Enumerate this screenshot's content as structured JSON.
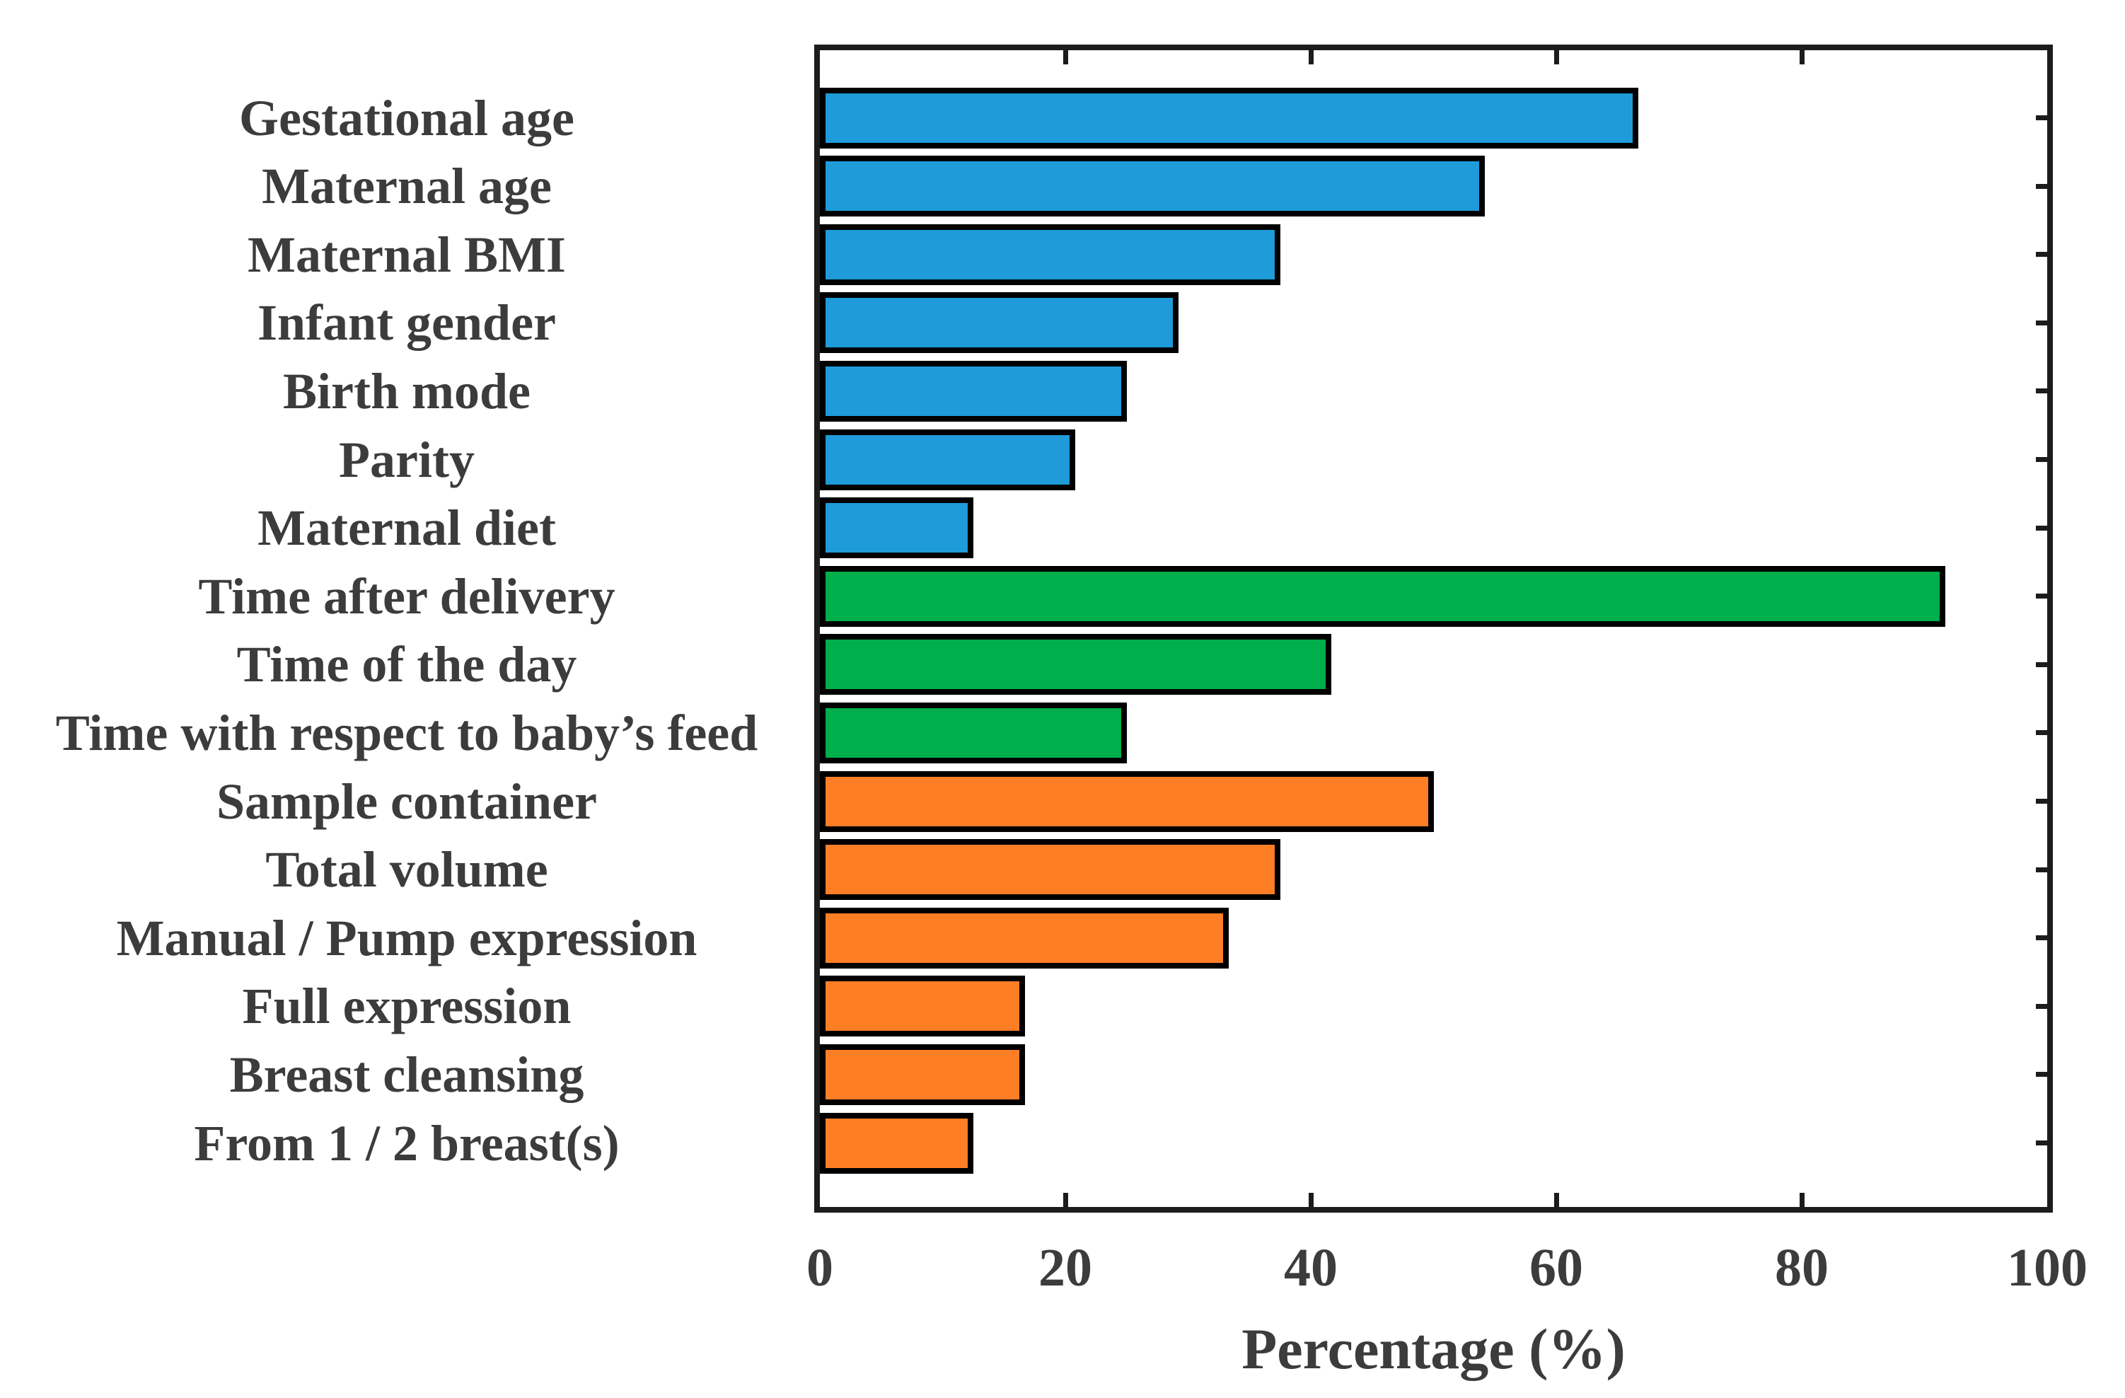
{
  "figure": {
    "background": "#ffffff",
    "text_color": "#3c3c3c",
    "axis_color": "#1c1c1c",
    "bar_border_color": "#000000"
  },
  "chart_data": {
    "type": "bar",
    "orientation": "horizontal",
    "title": "",
    "xlabel": "Percentage (%)",
    "ylabel": "",
    "xlim": [
      0,
      100
    ],
    "grid": false,
    "legend": "none",
    "xticks": [
      {
        "value": 0,
        "label": "0"
      },
      {
        "value": 20,
        "label": "20"
      },
      {
        "value": 40,
        "label": "40"
      },
      {
        "value": 60,
        "label": "60"
      },
      {
        "value": 80,
        "label": "80"
      },
      {
        "value": 100,
        "label": "100"
      }
    ],
    "categories": [
      "Gestational age",
      "Maternal age",
      "Maternal BMI",
      "Infant gender",
      "Birth mode",
      "Parity",
      "Maternal diet",
      "Time after delivery",
      "Time of the day",
      "Time with respect to baby’s feed",
      "Sample container",
      "Total volume",
      "Manual / Pump expression",
      "Full expression",
      "Breast cleansing",
      "From 1 / 2 breast(s)"
    ],
    "values": [
      66.7,
      54.2,
      37.5,
      29.2,
      25.0,
      20.8,
      12.5,
      91.7,
      41.7,
      25.0,
      50.0,
      37.5,
      33.3,
      16.7,
      16.7,
      12.5
    ],
    "bar_colors": [
      "#1e9bd8",
      "#1e9bd8",
      "#1e9bd8",
      "#1e9bd8",
      "#1e9bd8",
      "#1e9bd8",
      "#1e9bd8",
      "#00ae4b",
      "#00ae4b",
      "#00ae4b",
      "#fe7e26",
      "#fe7e26",
      "#fe7e26",
      "#fe7e26",
      "#fe7e26",
      "#fe7e26"
    ],
    "color_legend_hint": {
      "blue": "#1e9bd8",
      "green": "#00ae4b",
      "orange": "#fe7e26"
    }
  }
}
